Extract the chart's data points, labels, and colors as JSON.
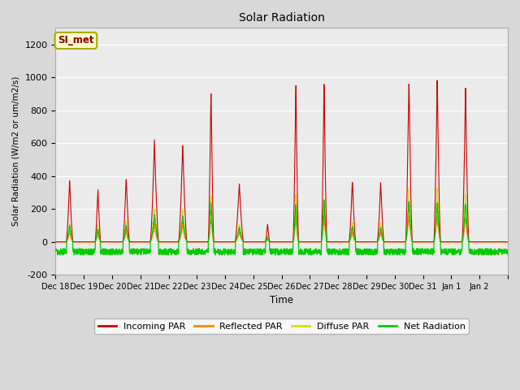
{
  "title": "Solar Radiation",
  "ylabel": "Solar Radiation (W/m2 or um/m2/s)",
  "xlabel": "Time",
  "ylim": [
    -200,
    1300
  ],
  "yticks": [
    -200,
    0,
    200,
    400,
    600,
    800,
    1000,
    1200
  ],
  "fig_bg_color": "#d8d8d8",
  "plot_bg_color": "#ebebeb",
  "legend_label": "SI_met",
  "legend_bg": "#ffffcc",
  "legend_border": "#aaaa00",
  "legend_text_color": "#8b0000",
  "series": {
    "incoming_color": "#cc0000",
    "reflected_color": "#ff8800",
    "diffuse_color": "#dddd00",
    "net_color": "#00cc00"
  },
  "x_tick_labels": [
    "Dec 18",
    "Dec 19",
    "Dec 20",
    "Dec 21",
    "Dec 22",
    "Dec 23",
    "Dec 24",
    "Dec 25",
    "Dec 26",
    "Dec 27",
    "Dec 28",
    "Dec 29",
    "Dec 30",
    "Dec 31",
    "Jan 1",
    "Jan 2"
  ],
  "n_days": 16,
  "points_per_day": 144,
  "day_peaks": [
    380,
    330,
    400,
    625,
    595,
    960,
    360,
    110,
    990,
    985,
    380,
    365,
    1010,
    1010,
    950,
    0
  ],
  "day_peak_widths": [
    0.12,
    0.1,
    0.12,
    0.15,
    0.15,
    0.1,
    0.15,
    0.08,
    0.1,
    0.1,
    0.12,
    0.12,
    0.12,
    0.12,
    0.12,
    0.1
  ],
  "night_net_min": -80,
  "night_net_max": -40,
  "grid_color": "#ffffff",
  "spine_color": "#aaaaaa"
}
